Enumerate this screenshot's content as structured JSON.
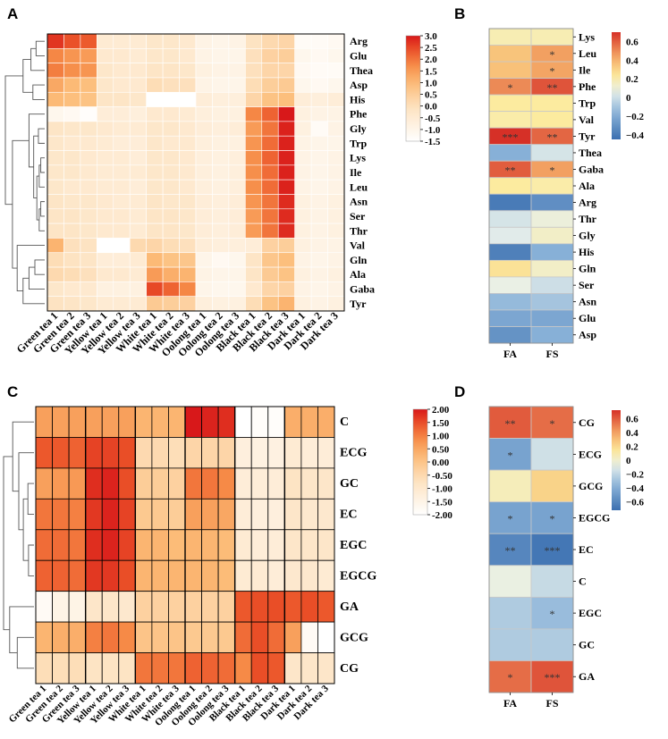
{
  "panels": {
    "a": "A",
    "b": "B",
    "c": "C",
    "d": "D"
  },
  "chart_data": [
    {
      "type": "heatmap",
      "panel": "A",
      "rows": [
        "Arg",
        "Glu",
        "Thea",
        "Asp",
        "His",
        "Phe",
        "Gly",
        "Trp",
        "Lys",
        "Ile",
        "Leu",
        "Asn",
        "Ser",
        "Thr",
        "Val",
        "Gln",
        "Ala",
        "Gaba",
        "Tyr"
      ],
      "cols": [
        "Green tea 1",
        "Green tea 2",
        "Green tea 3",
        "Yellow tea 1",
        "Yellow tea 2",
        "Yellow tea 3",
        "White tea 1",
        "White tea 2",
        "White tea 3",
        "Oolong tea 1",
        "Oolong tea 2",
        "Oolong tea 3",
        "Black tea 1",
        "Black tea 2",
        "Black tea 3",
        "Dark tea 1",
        "Dark tea 2",
        "Dark tea 3"
      ],
      "values": [
        [
          2.7,
          2.4,
          2.3,
          -0.5,
          -0.5,
          -0.5,
          -0.3,
          -0.3,
          -0.4,
          -0.9,
          -1.0,
          -0.9,
          -0.1,
          0.2,
          0.3,
          -1.3,
          -1.3,
          -1.2
        ],
        [
          1.8,
          1.6,
          1.5,
          -0.4,
          -0.4,
          -0.5,
          -0.3,
          -0.3,
          -0.4,
          -0.9,
          -1.0,
          -1.0,
          0.0,
          0.4,
          0.5,
          -1.1,
          -1.2,
          -1.1
        ],
        [
          1.9,
          1.7,
          1.6,
          -0.3,
          -0.4,
          -0.4,
          -0.2,
          -0.2,
          -0.3,
          -0.8,
          -0.9,
          -0.9,
          0.0,
          0.3,
          0.3,
          -1.2,
          -1.3,
          -1.3
        ],
        [
          1.3,
          1.0,
          0.9,
          -0.3,
          -0.4,
          -0.4,
          0.1,
          0.0,
          0.0,
          -0.9,
          -1.0,
          -1.0,
          0.1,
          0.5,
          0.6,
          -1.1,
          -1.2,
          -1.1
        ],
        [
          1.0,
          0.9,
          0.8,
          -0.2,
          -0.2,
          -0.3,
          -1.5,
          -1.5,
          -1.5,
          -0.6,
          -0.7,
          -0.7,
          0.3,
          0.8,
          0.9,
          -0.6,
          -0.7,
          -0.6
        ],
        [
          -1.1,
          -1.2,
          -1.4,
          -0.6,
          -0.6,
          -0.7,
          -0.4,
          -0.4,
          -0.5,
          -0.7,
          -0.8,
          -0.8,
          1.8,
          2.2,
          3.0,
          -0.8,
          -0.9,
          -0.9
        ],
        [
          -0.2,
          -0.3,
          -0.3,
          -0.4,
          -0.5,
          -0.5,
          -0.3,
          -0.3,
          -0.4,
          -0.6,
          -0.7,
          -0.6,
          1.5,
          2.0,
          2.9,
          -0.8,
          -1.3,
          -0.9
        ],
        [
          -0.3,
          -0.4,
          -0.4,
          -0.5,
          -0.6,
          -0.6,
          -0.3,
          -0.4,
          -0.4,
          -0.7,
          -0.8,
          -0.8,
          1.6,
          2.1,
          2.9,
          -0.9,
          -1.0,
          -1.0
        ],
        [
          -0.3,
          -0.3,
          -0.4,
          -0.5,
          -0.5,
          -0.6,
          -0.3,
          -0.3,
          -0.4,
          -0.7,
          -0.8,
          -0.7,
          1.7,
          2.2,
          2.9,
          -0.9,
          -1.0,
          -0.9
        ],
        [
          -0.3,
          -0.3,
          -0.4,
          -0.5,
          -0.5,
          -0.5,
          -0.3,
          -0.3,
          -0.4,
          -0.7,
          -0.8,
          -0.7,
          1.7,
          2.1,
          2.9,
          -0.9,
          -1.0,
          -0.9
        ],
        [
          -0.3,
          -0.4,
          -0.4,
          -0.5,
          -0.5,
          -0.6,
          -0.3,
          -0.3,
          -0.4,
          -0.7,
          -0.8,
          -0.7,
          1.7,
          2.1,
          2.9,
          -0.9,
          -1.0,
          -0.9
        ],
        [
          -0.2,
          -0.3,
          -0.3,
          -0.4,
          -0.5,
          -0.5,
          -0.2,
          -0.3,
          -0.3,
          -0.6,
          -0.7,
          -0.6,
          1.6,
          2.0,
          2.8,
          -0.8,
          -0.9,
          -0.8
        ],
        [
          -0.2,
          -0.2,
          -0.3,
          -0.4,
          -0.4,
          -0.5,
          -0.2,
          -0.2,
          -0.3,
          -0.6,
          -0.7,
          -0.6,
          1.5,
          2.0,
          2.8,
          -0.8,
          -0.9,
          -0.8
        ],
        [
          -0.2,
          -0.2,
          -0.3,
          -0.4,
          -0.4,
          -0.5,
          -0.2,
          -0.2,
          -0.3,
          -0.6,
          -0.7,
          -0.6,
          1.5,
          2.0,
          2.8,
          -0.8,
          -0.9,
          -0.8
        ],
        [
          1.1,
          0.0,
          -0.1,
          -1.5,
          -1.5,
          0.2,
          0.3,
          0.1,
          0.0,
          -0.6,
          -0.7,
          -0.7,
          -0.6,
          0.4,
          0.5,
          -0.8,
          -0.9,
          -0.9
        ],
        [
          0.1,
          -0.1,
          -0.2,
          -0.6,
          -0.6,
          -0.5,
          1.0,
          0.8,
          0.7,
          -1.0,
          -1.2,
          -1.1,
          -0.2,
          0.7,
          0.9,
          -0.9,
          -1.0,
          -0.9
        ],
        [
          0.2,
          0.1,
          0.0,
          -0.4,
          -0.4,
          -0.5,
          1.5,
          1.2,
          1.1,
          -0.9,
          -1.0,
          -1.0,
          -0.2,
          0.6,
          0.8,
          -0.8,
          -0.9,
          -0.8
        ],
        [
          -0.3,
          -0.4,
          -0.4,
          -0.8,
          -0.8,
          -0.8,
          2.5,
          2.2,
          1.8,
          -1.0,
          -1.1,
          -1.1,
          -0.4,
          0.3,
          0.4,
          -0.9,
          -1.0,
          -0.9
        ],
        [
          -0.1,
          -0.2,
          -0.3,
          -0.5,
          -0.5,
          -0.5,
          0.6,
          0.5,
          0.4,
          -0.7,
          -0.8,
          -0.8,
          0.1,
          0.8,
          1.1,
          -0.8,
          -0.9,
          -0.8
        ]
      ],
      "colorbar": {
        "min": -1.5,
        "max": 3.0,
        "ticks": [
          "3.0",
          "2.5",
          "2.0",
          "1.5",
          "1.0",
          "0.5",
          "0.0",
          "-0.5",
          "-1.0",
          "-1.5"
        ]
      }
    },
    {
      "type": "heatmap",
      "panel": "B",
      "rows": [
        "Lys",
        "Leu",
        "Ile",
        "Phe",
        "Trp",
        "Val",
        "Tyr",
        "Thea",
        "Gaba",
        "Ala",
        "Arg",
        "Thr",
        "Gly",
        "His",
        "Gln",
        "Ser",
        "Asn",
        "Glu",
        "Asp"
      ],
      "cols": [
        "FA",
        "FS"
      ],
      "values": [
        [
          0.18,
          0.18
        ],
        [
          0.35,
          0.45
        ],
        [
          0.36,
          0.44
        ],
        [
          0.5,
          0.62
        ],
        [
          0.22,
          0.22
        ],
        [
          0.2,
          0.22
        ],
        [
          0.72,
          0.58
        ],
        [
          -0.18,
          0.02
        ],
        [
          0.6,
          0.45
        ],
        [
          0.22,
          0.2
        ],
        [
          -0.4,
          -0.32
        ],
        [
          0.02,
          0.1
        ],
        [
          0.05,
          0.14
        ],
        [
          -0.38,
          -0.18
        ],
        [
          0.25,
          0.14
        ],
        [
          0.08,
          0.0
        ],
        [
          -0.14,
          -0.1
        ],
        [
          -0.22,
          -0.22
        ],
        [
          -0.3,
          -0.18
        ]
      ],
      "stars": [
        [
          "",
          ""
        ],
        [
          "",
          "*"
        ],
        [
          "",
          "*"
        ],
        [
          "*",
          "**"
        ],
        [
          "",
          ""
        ],
        [
          "",
          ""
        ],
        [
          "***",
          "**"
        ],
        [
          "",
          ""
        ],
        [
          "**",
          "*"
        ],
        [
          "",
          ""
        ],
        [
          "",
          ""
        ],
        [
          "",
          ""
        ],
        [
          "",
          ""
        ],
        [
          "",
          ""
        ],
        [
          "",
          ""
        ],
        [
          "",
          ""
        ],
        [
          "",
          ""
        ],
        [
          "",
          ""
        ],
        [
          "",
          ""
        ]
      ],
      "colorbar": {
        "min": -0.45,
        "max": 0.7,
        "ticks": [
          "0.6",
          "0.4",
          "0.2",
          "0",
          "−0.2",
          "−0.4"
        ],
        "tick_values": [
          0.6,
          0.4,
          0.2,
          0,
          -0.2,
          -0.4
        ]
      }
    },
    {
      "type": "heatmap",
      "panel": "C",
      "rows": [
        "C",
        "ECG",
        "GC",
        "EC",
        "EGC",
        "EGCG",
        "GA",
        "GCG",
        "CG"
      ],
      "cols": [
        "Green tea 1",
        "Green tea 2",
        "Green tea 3",
        "Yellow tea 1",
        "Yellow tea 2",
        "Yellow tea 3",
        "White tea 1",
        "White tea 2",
        "White tea 3",
        "Oolong tea 1",
        "Oolong tea 2",
        "Oolong tea 3",
        "Black tea 1",
        "Black tea 2",
        "Black tea 3",
        "Dark tea 1",
        "Dark tea 2",
        "Dark tea 3"
      ],
      "values": [
        [
          0.6,
          0.6,
          0.6,
          0.6,
          0.6,
          0.6,
          0.3,
          0.3,
          0.3,
          2.0,
          1.9,
          1.8,
          -2.0,
          -1.9,
          -1.9,
          0.4,
          0.4,
          0.4
        ],
        [
          1.4,
          1.4,
          1.3,
          1.6,
          1.6,
          1.5,
          -0.5,
          -0.5,
          -0.6,
          -0.4,
          -0.4,
          -0.4,
          -1.3,
          -1.4,
          -1.4,
          -1.1,
          -1.2,
          -1.2
        ],
        [
          0.6,
          0.7,
          0.7,
          1.8,
          1.9,
          1.5,
          -0.2,
          -0.2,
          -0.3,
          1.1,
          1.1,
          0.9,
          -1.2,
          -1.2,
          -1.2,
          -0.8,
          -0.9,
          -0.9
        ],
        [
          1.1,
          1.1,
          1.0,
          1.7,
          1.9,
          1.6,
          -0.1,
          -0.1,
          -0.2,
          0.6,
          0.6,
          0.5,
          -1.2,
          -1.3,
          -1.3,
          -0.9,
          -1.0,
          -1.0
        ],
        [
          1.2,
          1.2,
          1.1,
          1.8,
          1.9,
          1.6,
          0.3,
          0.3,
          0.2,
          0.3,
          0.3,
          0.2,
          -1.1,
          -1.2,
          -1.2,
          -0.9,
          -0.9,
          -0.9
        ],
        [
          1.3,
          1.3,
          1.2,
          1.7,
          1.7,
          1.5,
          0.3,
          0.3,
          0.3,
          0.3,
          0.3,
          0.2,
          -1.1,
          -1.1,
          -1.2,
          -1.0,
          -1.0,
          -1.1
        ],
        [
          -1.8,
          -1.5,
          -1.5,
          -0.9,
          -0.9,
          -1.0,
          -0.3,
          -0.3,
          -0.3,
          -0.3,
          -0.3,
          -0.3,
          1.4,
          1.5,
          1.5,
          1.4,
          1.5,
          1.4
        ],
        [
          0.3,
          0.4,
          0.4,
          1.0,
          1.1,
          0.9,
          0.0,
          0.0,
          0.0,
          -0.1,
          -0.1,
          -0.1,
          1.2,
          1.5,
          1.2,
          0.6,
          -1.8,
          -2.0
        ],
        [
          -0.6,
          -0.6,
          -0.6,
          -0.8,
          -0.8,
          -0.8,
          1.1,
          1.1,
          1.1,
          1.3,
          1.3,
          1.2,
          0.9,
          1.5,
          1.4,
          -0.9,
          -0.9,
          -0.9
        ]
      ],
      "colorbar": {
        "min": -2.0,
        "max": 2.0,
        "ticks": [
          "2.00",
          "1.50",
          "1.00",
          "0.50",
          "0.00",
          "-0.50",
          "-1.00",
          "-1.50",
          "-2.00"
        ]
      }
    },
    {
      "type": "heatmap",
      "panel": "D",
      "rows": [
        "CG",
        "ECG",
        "GCG",
        "EGCG",
        "EC",
        "C",
        "EGC",
        "GC",
        "GA"
      ],
      "cols": [
        "FA",
        "FS"
      ],
      "values": [
        [
          0.6,
          0.55
        ],
        [
          -0.45,
          -0.15
        ],
        [
          0.05,
          0.22
        ],
        [
          -0.45,
          -0.45
        ],
        [
          -0.6,
          -0.68
        ],
        [
          -0.05,
          -0.18
        ],
        [
          -0.25,
          -0.32
        ],
        [
          -0.25,
          -0.25
        ],
        [
          0.55,
          0.62
        ]
      ],
      "stars": [
        [
          "**",
          "*"
        ],
        [
          "*",
          ""
        ],
        [
          "",
          ""
        ],
        [
          "*",
          "*"
        ],
        [
          "**",
          "***"
        ],
        [
          "",
          ""
        ],
        [
          "",
          "*"
        ],
        [
          "",
          ""
        ],
        [
          "*",
          "***"
        ]
      ],
      "colorbar": {
        "min": -0.72,
        "max": 0.72,
        "ticks": [
          "0.6",
          "0.4",
          "0.2",
          "0",
          "−0.2",
          "−0.4",
          "−0.6"
        ],
        "tick_values": [
          0.6,
          0.4,
          0.2,
          0,
          -0.2,
          -0.4,
          -0.6
        ]
      }
    }
  ]
}
